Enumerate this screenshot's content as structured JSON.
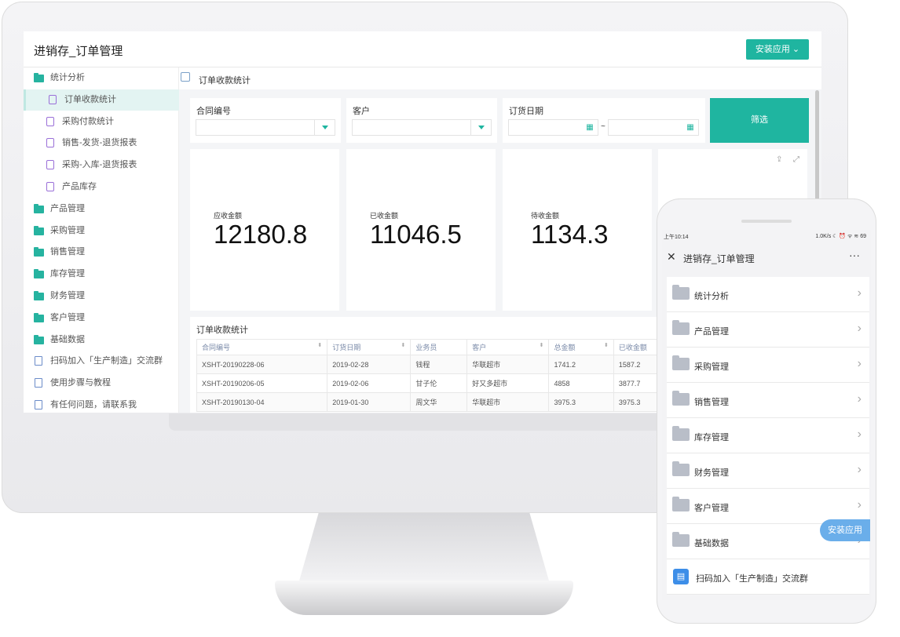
{
  "app": {
    "title": "进销存_订单管理",
    "install_label": "安装应用 ⌄"
  },
  "sidebar": {
    "items": [
      {
        "label": "统计分析",
        "type": "folder"
      },
      {
        "label": "订单收款统计",
        "type": "report",
        "active": true
      },
      {
        "label": "采购付款统计",
        "type": "report"
      },
      {
        "label": "销售-发货-退货报表",
        "type": "report"
      },
      {
        "label": "采购-入库-退货报表",
        "type": "report"
      },
      {
        "label": "产品库存",
        "type": "report"
      },
      {
        "label": "产品管理",
        "type": "folder"
      },
      {
        "label": "采购管理",
        "type": "folder"
      },
      {
        "label": "销售管理",
        "type": "folder"
      },
      {
        "label": "库存管理",
        "type": "folder"
      },
      {
        "label": "财务管理",
        "type": "folder"
      },
      {
        "label": "客户管理",
        "type": "folder"
      },
      {
        "label": "基础数据",
        "type": "folder"
      },
      {
        "label": "扫码加入「生产制造」交流群",
        "type": "doc"
      },
      {
        "label": "使用步骤与教程",
        "type": "doc"
      },
      {
        "label": "有任何问题，请联系我",
        "type": "doc"
      }
    ]
  },
  "breadcrumb": "订单收款统计",
  "filters": {
    "contract_label": "合同编号",
    "customer_label": "客户",
    "date_label": "订货日期",
    "date_sep": "~",
    "filter_button": "筛选"
  },
  "stats": [
    {
      "label": "应收金额",
      "value": "12180.8"
    },
    {
      "label": "已收金额",
      "value": "11046.5"
    },
    {
      "label": "待收金额",
      "value": "1134.3"
    }
  ],
  "table": {
    "title": "订单收款统计",
    "columns": [
      "合同编号",
      "订货日期",
      "业务员",
      "客户",
      "总金额",
      "已收金额"
    ],
    "rows": [
      [
        "XSHT-20190228-06",
        "2019-02-28",
        "钱程",
        "华联超市",
        "1741.2",
        "1587.2"
      ],
      [
        "XSHT-20190206-05",
        "2019-02-06",
        "甘子伦",
        "好又多超市",
        "4858",
        "3877.7"
      ],
      [
        "XSHT-20190130-04",
        "2019-01-30",
        "周文华",
        "华联超市",
        "3975.3",
        "3975.3"
      ]
    ]
  },
  "phone": {
    "time": "上午10:14",
    "status": "1.0K/s ☾ ⏰ ᯤ ≋ 69",
    "title": "进销存_订单管理",
    "more": "···",
    "close": "✕",
    "items": [
      "统计分析",
      "产品管理",
      "采购管理",
      "销售管理",
      "库存管理",
      "财务管理",
      "客户管理",
      "基础数据"
    ],
    "doc_item": "扫码加入「生产制造」交流群",
    "install_label": "安装应用"
  },
  "colors": {
    "accent": "#1fb5a0"
  }
}
